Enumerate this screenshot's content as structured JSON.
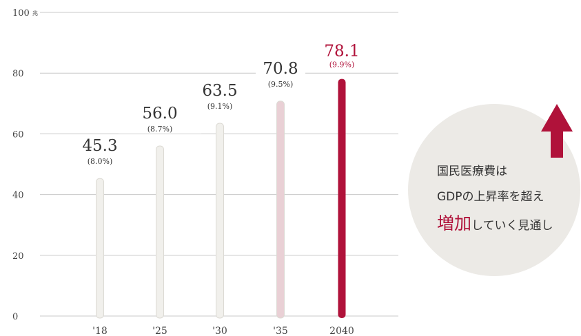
{
  "chart_data": {
    "type": "bar",
    "categories": [
      "'18",
      "'25",
      "'30",
      "'35",
      "2040"
    ],
    "values": [
      45.3,
      56.0,
      63.5,
      70.8,
      78.1
    ],
    "value_labels": [
      "45.3",
      "56.0",
      "63.5",
      "70.8",
      "78.1"
    ],
    "gdp_share_labels": [
      "(8.0%)",
      "(8.7%)",
      "(9.1%)",
      "(9.5%)",
      "(9.9%)"
    ],
    "yticks": [
      "0",
      "20",
      "40",
      "60",
      "80",
      "100"
    ],
    "ytick_values": [
      0,
      20,
      40,
      60,
      80,
      100
    ],
    "y_unit": "兆",
    "ylim": [
      0,
      100
    ],
    "grid": true,
    "bar_colors": [
      "#f1f0ec",
      "#f1f0ec",
      "#f1f0ec",
      "#e9d0d5",
      "#b0123a"
    ],
    "label_colors": [
      "#333333",
      "#333333",
      "#333333",
      "#333333",
      "#b0123a"
    ]
  },
  "note": {
    "line1": "国民医療費は",
    "line2": "GDPの上昇率を超え",
    "emphasis": "増加",
    "line3_rest": "していく見通し"
  },
  "colors": {
    "accent": "#b0123a",
    "circle": "#eceae6",
    "gridline": "#c8c8c8"
  }
}
